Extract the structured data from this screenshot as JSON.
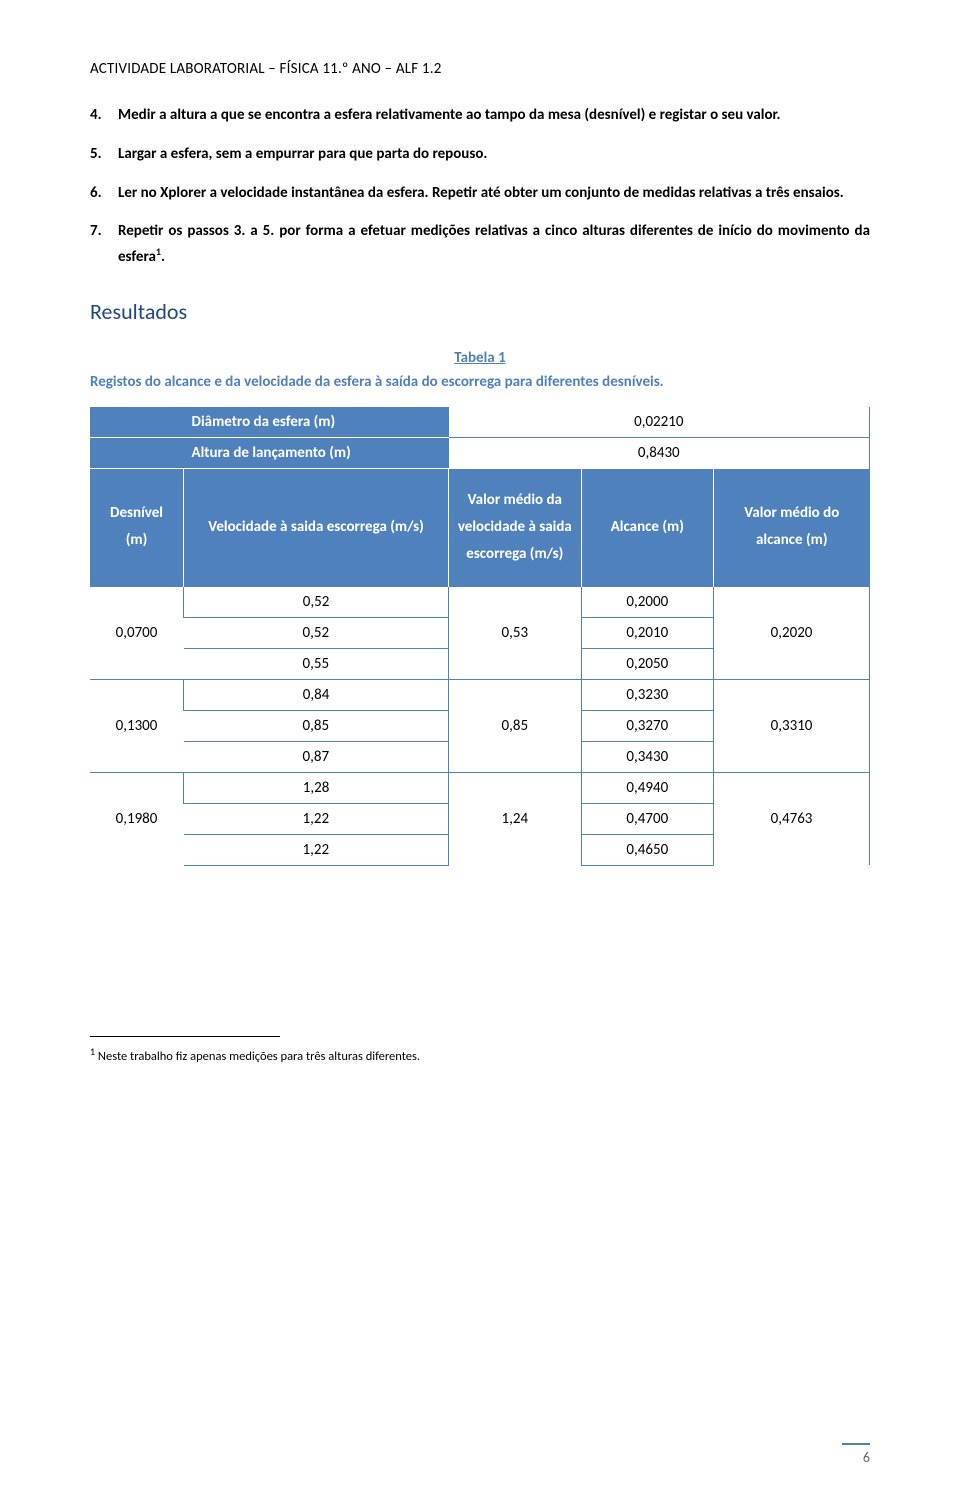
{
  "header": "ACTIVIDADE LABORATORIAL – FÍSICA 11.º ANO – ALF 1.2",
  "steps": [
    {
      "n": "4.",
      "text": "Medir a altura a que se encontra a esfera relativamente ao tampo da mesa (desnível) e registar o seu valor."
    },
    {
      "n": "5.",
      "text": "Largar a esfera, sem a empurrar para que parta do repouso."
    },
    {
      "n": "6.",
      "text": "Ler no Xplorer a velocidade instantânea da esfera. Repetir até obter um conjunto de medidas relativas a três ensaios."
    },
    {
      "n": "7.",
      "text_html": "Repetir os passos 3. a 5. por forma a efetuar medições relativas a cinco alturas diferentes de início do movimento da esfera<sup class=\"fn\">1</sup>."
    }
  ],
  "resultados_title": "Resultados",
  "table_label": "Tabela 1",
  "table_caption": "Registos do alcance e da velocidade da esfera à saída do escorrega para diferentes desníveis.",
  "info_rows": [
    {
      "label": "Diâmetro da esfera (m)",
      "value": "0,02210"
    },
    {
      "label": "Altura de lançamento (m)",
      "value": "0,8430"
    }
  ],
  "columns": {
    "desnivel": "Desnível (m)",
    "vel": "Velocidade à saida escorrega (m/s)",
    "vel_med": "Valor médio da velocidade à saida escorrega (m/s)",
    "alc": "Alcance (m)",
    "alc_med": "Valor médio do alcance (m)"
  },
  "groups": [
    {
      "desnivel": "0,0700",
      "vel": [
        "0,52",
        "0,52",
        "0,55"
      ],
      "vel_med": "0,53",
      "alc": [
        "0,2000",
        "0,2010",
        "0,2050"
      ],
      "alc_med": "0,2020"
    },
    {
      "desnivel": "0,1300",
      "vel": [
        "0,84",
        "0,85",
        "0,87"
      ],
      "vel_med": "0,85",
      "alc": [
        "0,3230",
        "0,3270",
        "0,3430"
      ],
      "alc_med": "0,3310"
    },
    {
      "desnivel": "0,1980",
      "vel": [
        "1,28",
        "1,22",
        "1,22"
      ],
      "vel_med": "1,24",
      "alc": [
        "0,4940",
        "0,4700",
        "0,4650"
      ],
      "alc_med": "0,4763"
    }
  ],
  "footnote": {
    "marker": "1",
    "text": "Neste trabalho fiz apenas medições para três alturas diferentes."
  },
  "page_number": "6",
  "colors": {
    "brand": "#4f81bd",
    "heading": "#1f497d",
    "text": "#000000",
    "page_num": "#666666",
    "bg": "#ffffff"
  }
}
